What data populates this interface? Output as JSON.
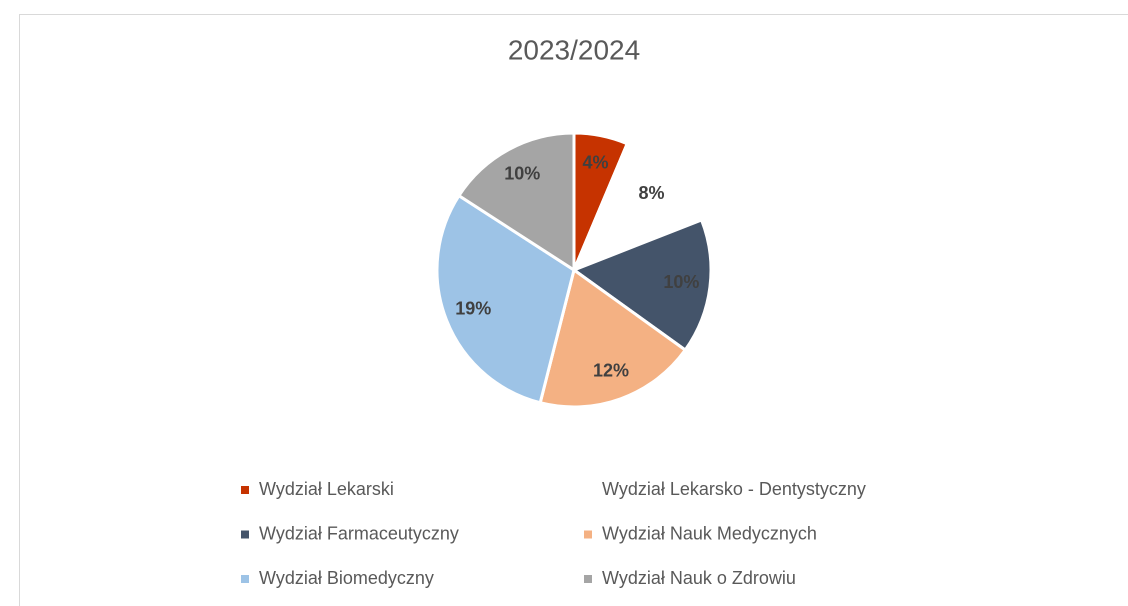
{
  "chart_data": {
    "type": "pie",
    "title": "2023/2024",
    "categories": [
      "Wydział Lekarski",
      "Wydział Lekarsko - Dentystyczny",
      "Wydział Farmaceutyczny",
      "Wydział Nauk Medycznych",
      "Wydział Biomedyczny",
      "Wydział Nauk o Zdrowiu"
    ],
    "values": [
      4,
      8,
      10,
      12,
      19,
      10
    ],
    "value_labels": [
      "4%",
      "8%",
      "10%",
      "12%",
      "19%",
      "10%"
    ],
    "colors": [
      "#c63300",
      "#ffffff",
      "#44546a",
      "#f4b183",
      "#9dc3e6",
      "#a5a5a5"
    ]
  }
}
